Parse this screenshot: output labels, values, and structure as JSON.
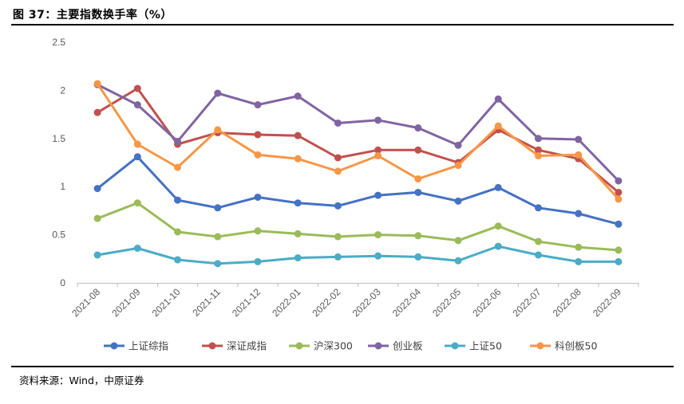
{
  "title": "图 37：主要指数换手率（%）",
  "source": "资料来源：Wind，中原证券",
  "chart_data": {
    "type": "line",
    "title": "主要指数换手率（%）",
    "xlabel": "",
    "ylabel": "",
    "ylim": [
      0,
      2.5
    ],
    "yticks": [
      "0",
      "0.5",
      "1",
      "1.5",
      "2",
      "2.5"
    ],
    "categories": [
      "2021-08",
      "2021-09",
      "2021-10",
      "2021-11",
      "2021-12",
      "2022-01",
      "2022-02",
      "2022-03",
      "2022-04",
      "2022-05",
      "2022-06",
      "2022-07",
      "2022-08",
      "2022-09"
    ],
    "legend_position": "bottom",
    "series": [
      {
        "name": "上证综指",
        "color": "#4472C4",
        "values": [
          0.98,
          1.31,
          0.86,
          0.78,
          0.89,
          0.83,
          0.8,
          0.91,
          0.94,
          0.85,
          0.99,
          0.78,
          0.72,
          0.61
        ]
      },
      {
        "name": "深证成指",
        "color": "#C0504D",
        "values": [
          1.77,
          2.02,
          1.44,
          1.56,
          1.54,
          1.53,
          1.3,
          1.38,
          1.38,
          1.25,
          1.59,
          1.38,
          1.29,
          0.94
        ]
      },
      {
        "name": "沪深300",
        "color": "#9BBB59",
        "values": [
          0.67,
          0.83,
          0.53,
          0.48,
          0.54,
          0.51,
          0.48,
          0.5,
          0.49,
          0.44,
          0.59,
          0.43,
          0.37,
          0.34
        ]
      },
      {
        "name": "创业板",
        "color": "#8064A2",
        "values": [
          2.06,
          1.85,
          1.47,
          1.97,
          1.85,
          1.94,
          1.66,
          1.69,
          1.61,
          1.43,
          1.91,
          1.5,
          1.49,
          1.06
        ]
      },
      {
        "name": "上证50",
        "color": "#4BACC6",
        "values": [
          0.29,
          0.36,
          0.24,
          0.2,
          0.22,
          0.26,
          0.27,
          0.28,
          0.27,
          0.23,
          0.38,
          0.29,
          0.22,
          0.22
        ]
      },
      {
        "name": "科创板50",
        "color": "#F79646",
        "values": [
          2.07,
          1.44,
          1.2,
          1.59,
          1.33,
          1.29,
          1.16,
          1.32,
          1.08,
          1.22,
          1.63,
          1.32,
          1.33,
          0.87
        ]
      }
    ]
  }
}
